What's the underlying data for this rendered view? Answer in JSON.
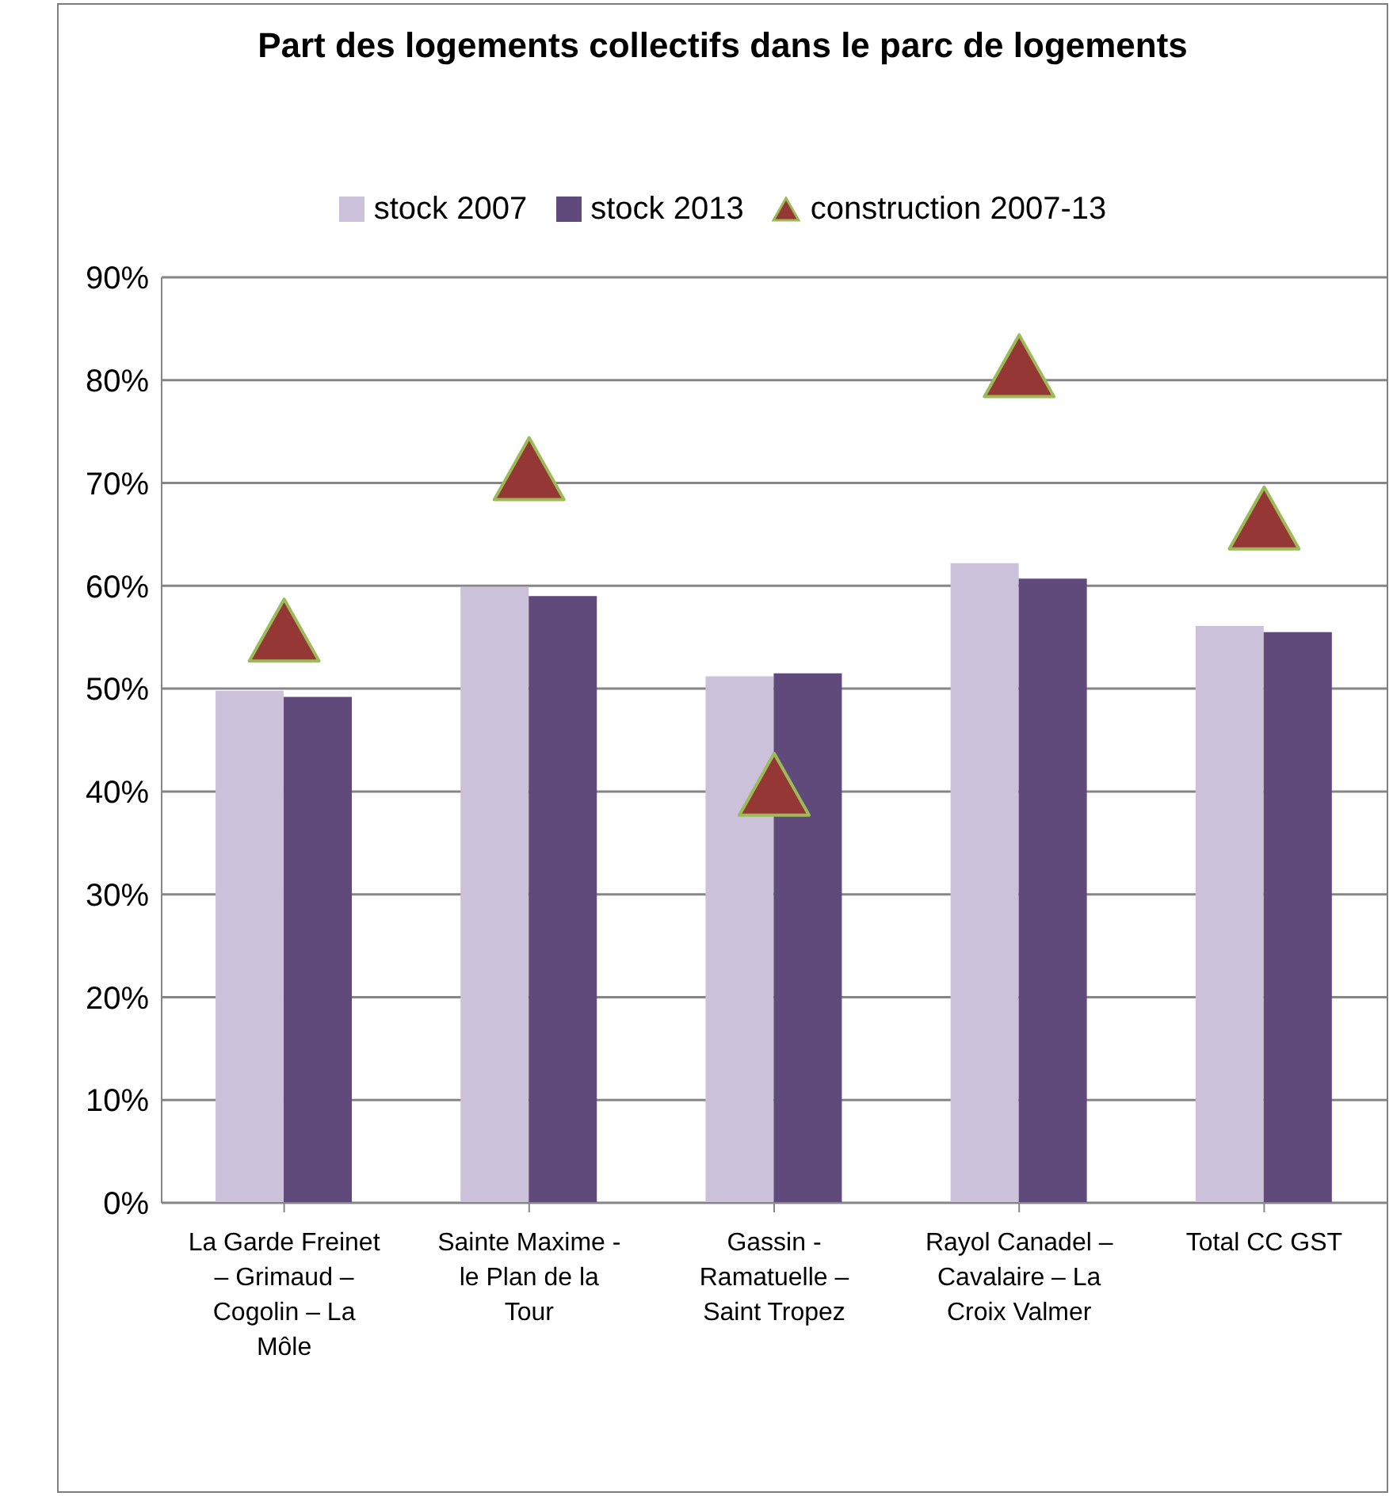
{
  "chart_data": {
    "type": "bar",
    "title": "Part des logements collectifs dans le parc de logements",
    "categories": [
      "La Garde Freinet – Grimaud – Cogolin – La Môle",
      "Sainte Maxime - le Plan de la Tour",
      "Gassin - Ramatuelle – Saint Tropez",
      "Rayol Canadel – Cavalaire – La Croix Valmer",
      "Total CC GST"
    ],
    "series": [
      {
        "name": "stock 2007",
        "color": "#ccc1da",
        "values": [
          49.8,
          59.9,
          51.2,
          62.2,
          56.1
        ]
      },
      {
        "name": "stock 2013",
        "color": "#604a7b",
        "values": [
          49.2,
          59.0,
          51.5,
          60.7,
          55.5
        ]
      },
      {
        "name": "construction 2007-13",
        "type": "scatter",
        "marker": "triangle",
        "color": "#953735",
        "values": [
          55.7,
          71.4,
          40.7,
          81.4,
          66.6
        ]
      }
    ],
    "ylim": [
      0,
      90
    ],
    "yticks": [
      {
        "value": 0,
        "label": "0%"
      },
      {
        "value": 10,
        "label": "10%"
      },
      {
        "value": 20,
        "label": "20%"
      },
      {
        "value": 30,
        "label": "30%"
      },
      {
        "value": 40,
        "label": "40%"
      },
      {
        "value": 50,
        "label": "50%"
      },
      {
        "value": 60,
        "label": "60%"
      },
      {
        "value": 70,
        "label": "70%"
      },
      {
        "value": 80,
        "label": "80%"
      },
      {
        "value": 90,
        "label": "90%"
      }
    ],
    "grid": "y",
    "legend": "top"
  }
}
